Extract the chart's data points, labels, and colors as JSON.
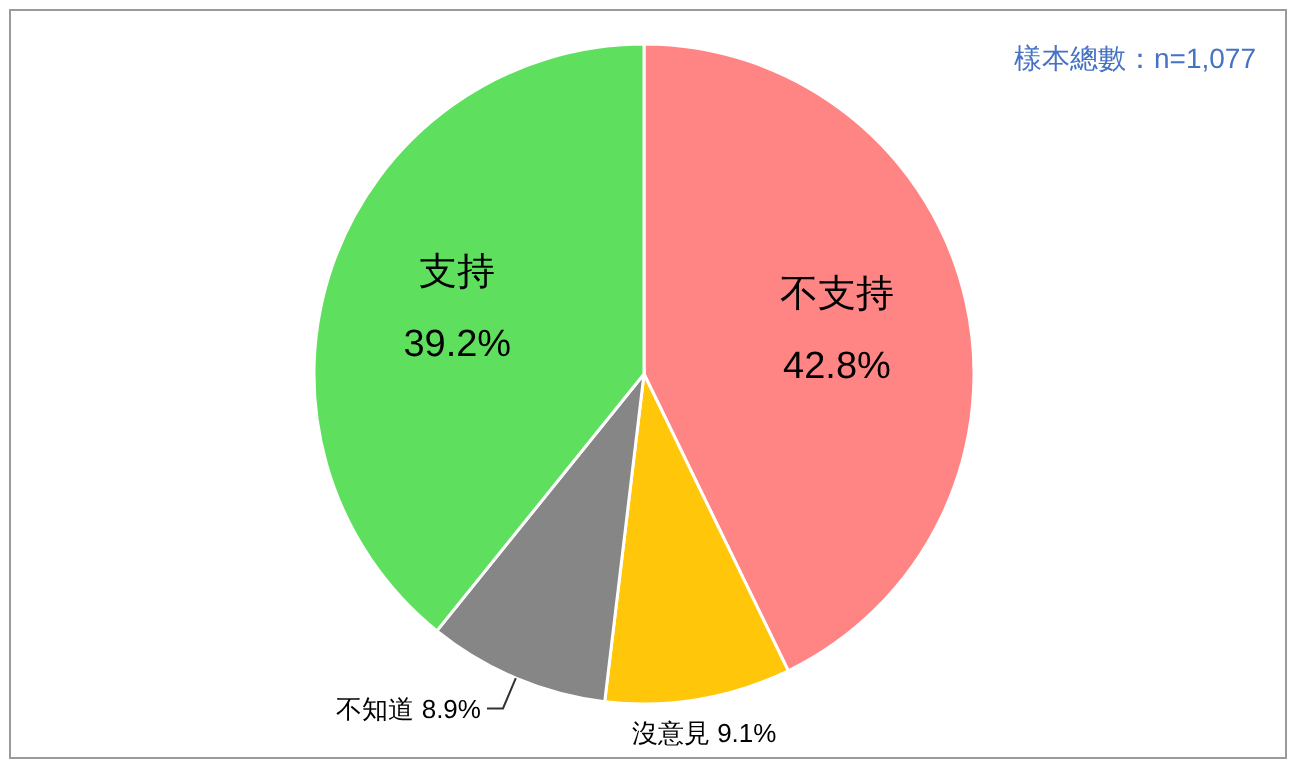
{
  "chart_data": {
    "type": "pie",
    "categories": [
      "不支持",
      "沒意見",
      "不知道",
      "支持"
    ],
    "values": [
      42.8,
      9.1,
      8.9,
      39.2
    ],
    "colors": [
      "#ff8585",
      "#ffc60a",
      "#868686",
      "#5ee05e"
    ],
    "value_labels": [
      "42.8%",
      "9.1%",
      "8.9%",
      "39.2%"
    ],
    "annotations": [
      "樣本總數：n=1,077"
    ]
  }
}
